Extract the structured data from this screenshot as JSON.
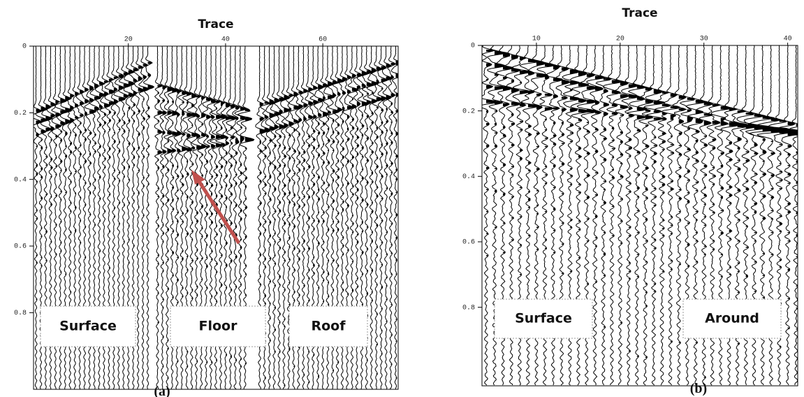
{
  "panels": [
    {
      "title": "Trace",
      "xlim": [
        0.5,
        75.5
      ],
      "ylim": [
        0,
        1.03
      ],
      "xticks": [
        20,
        40,
        60
      ],
      "yticks": [
        0,
        0.2,
        0.4,
        0.6,
        0.8
      ],
      "regions": [
        "Surface",
        "Floor",
        "Roof"
      ],
      "caption": "(a)"
    },
    {
      "title": "Trace",
      "xlim": [
        3.5,
        41.2
      ],
      "ylim": [
        0,
        1.04
      ],
      "xticks": [
        10,
        20,
        30,
        40
      ],
      "yticks": [
        0,
        0.2,
        0.4,
        0.6,
        0.8
      ],
      "regions": [
        "Surface",
        "Around"
      ],
      "caption": "(b)"
    }
  ]
}
